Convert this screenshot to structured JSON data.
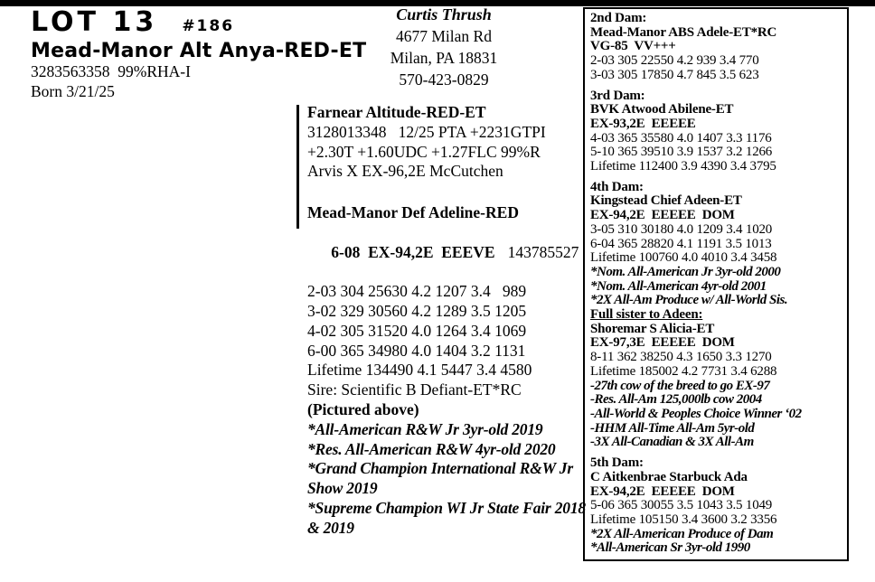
{
  "header": {
    "lot": "LOT 13",
    "tag": "#186",
    "name": "Mead-Manor Alt Anya-RED-ET",
    "reg_line": "3283563358  99%RHA-I",
    "born": "Born 3/21/25"
  },
  "contact": {
    "name": "Curtis Thrush",
    "address1": "4677 Milan Rd",
    "address2": "Milan, PA 18831",
    "phone": "570-423-0829"
  },
  "sire": {
    "name": "Farnear Altitude-RED-ET",
    "lines": [
      "3128013348   12/25 PTA +2231GTPI",
      "+2.30T +1.60UDC +1.27FLC 99%R",
      "Arvis X EX-96,2E McCutchen"
    ]
  },
  "dam": {
    "name": "Mead-Manor Def Adeline-RED",
    "score": "6-08  EX-94,2E  EEEVE",
    "reg_number": "143785527",
    "records": [
      "2-03 304 25630 4.2 1207 3.4   989",
      "3-02 329 30560 4.2 1289 3.5 1205",
      "4-02 305 31520 4.0 1264 3.4 1069",
      "6-00 365 34980 4.0 1404 3.2 1131",
      "Lifetime 134490 4.1 5447 3.4 4580",
      "Sire: Scientific B Defiant-ET*RC"
    ],
    "pictured": "(Pictured above)",
    "awards": [
      "*All-American R&W Jr 3yr-old 2019",
      "*Res. All-American R&W 4yr-old 2020",
      "*Grand Champion International R&W Jr Show 2019",
      "*Supreme Champion WI Jr State Fair 2018 & 2019"
    ]
  },
  "pedigree_box": {
    "sections": [
      {
        "title": "2nd Dam:",
        "underline_title": false,
        "gap_before": false,
        "name": "Mead-Manor ABS Adele-ET*RC",
        "score": "VG-85  VV+++",
        "records": [
          "2-03 305 22550 4.2 939 3.4 770",
          "3-03 305 17850 4.7 845 3.5 623"
        ],
        "awards": []
      },
      {
        "title": "3rd Dam:",
        "underline_title": false,
        "gap_before": true,
        "name": "BVK Atwood Abilene-ET",
        "score": "EX-93,2E  EEEEE",
        "records": [
          "4-03 365 35580 4.0 1407 3.3 1176",
          "5-10 365 39510 3.9 1537 3.2 1266",
          "Lifetime 112400 3.9 4390 3.4 3795"
        ],
        "awards": []
      },
      {
        "title": "4th Dam:",
        "underline_title": false,
        "gap_before": true,
        "name": "Kingstead Chief Adeen-ET",
        "score": "EX-94,2E  EEEEE  DOM",
        "records": [
          "3-05 310 30180 4.0 1209 3.4 1020",
          "6-04 365 28820 4.1 1191 3.5 1013",
          "Lifetime 100760 4.0 4010 3.4 3458"
        ],
        "awards": [
          "*Nom. All-American Jr 3yr-old 2000",
          "*Nom. All-American 4yr-old 2001",
          "*2X All-Am Produce w/ All-World Sis."
        ]
      },
      {
        "title": "Full sister to Adeen:",
        "underline_title": true,
        "gap_before": false,
        "name": "Shoremar S Alicia-ET",
        "score": "EX-97,3E  EEEEE  DOM",
        "records": [
          "8-11 362 38250 4.3 1650 3.3 1270",
          "Lifetime 185002 4.2 7731 3.4 6288"
        ],
        "awards": [
          "-27th cow of the breed to go EX-97",
          "-Res. All-Am 125,000lb cow 2004",
          "-All-World & Peoples Choice Winner ‘02",
          "-HHM All-Time All-Am 5yr-old",
          "-3X All-Canadian & 3X All-Am"
        ]
      },
      {
        "title": "5th Dam:",
        "underline_title": false,
        "gap_before": true,
        "name": "C Aitkenbrae Starbuck Ada",
        "score": "EX-94,2E  EEEEE  DOM",
        "records": [
          "5-06 365 30055 3.5 1043 3.5 1049",
          "Lifetime 105150 3.4 3600 3.2 3356"
        ],
        "awards": [
          "*2X All-American Produce of Dam",
          "*All-American Sr 3yr-old 1990"
        ]
      }
    ]
  }
}
